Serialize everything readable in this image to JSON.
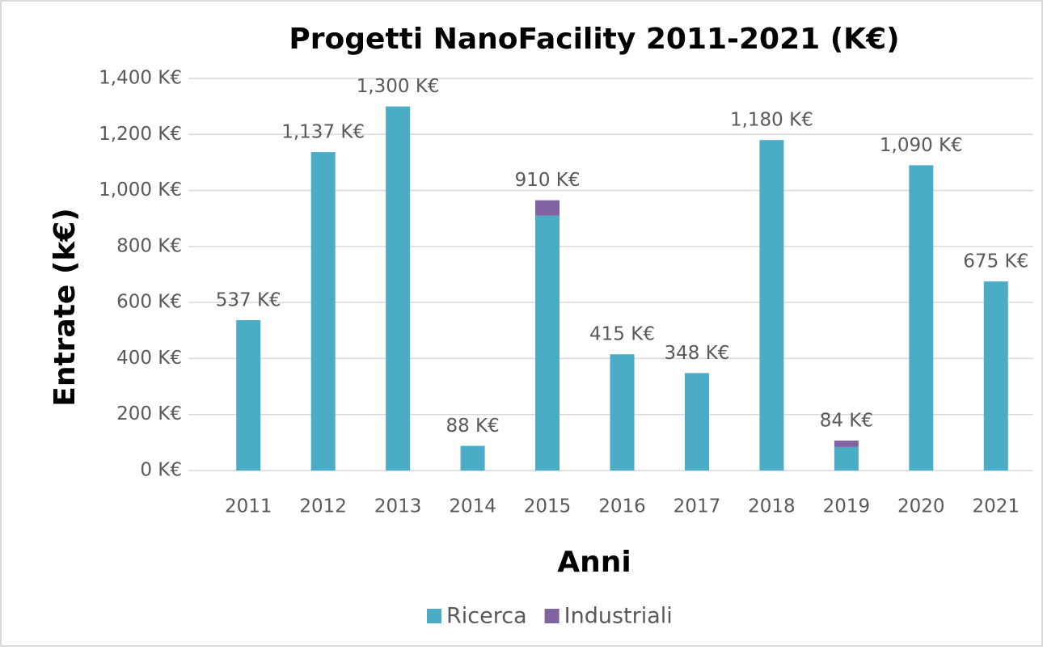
{
  "chart_data": {
    "type": "stacked_bar",
    "title": "Progetti NanoFacility 2011-2021 (K€)",
    "x_label": "Anni",
    "y_label": "Entrate (k€)",
    "categories": [
      "2011",
      "2012",
      "2013",
      "2014",
      "2015",
      "2016",
      "2017",
      "2018",
      "2019",
      "2020",
      "2021"
    ],
    "series": [
      {
        "name": "Ricerca",
        "color": "#4bacc6",
        "values": [
          537,
          1137,
          1300,
          88,
          910,
          415,
          348,
          1180,
          84,
          1090,
          675
        ],
        "value_labels": [
          "537 K€",
          "1,137 K€",
          "1,300 K€",
          "88 K€",
          "910 K€",
          "415 K€",
          "348 K€",
          "1,180 K€",
          "84 K€",
          "1,090 K€",
          "675 K€"
        ]
      },
      {
        "name": "Industriali",
        "color": "#8064a2",
        "values": [
          0,
          0,
          0,
          0,
          55,
          0,
          0,
          0,
          23,
          0,
          0
        ]
      }
    ],
    "ylim": [
      0,
      1400
    ],
    "yticks": [
      {
        "value": 0,
        "label": "0 K€"
      },
      {
        "value": 200,
        "label": "200 K€"
      },
      {
        "value": 400,
        "label": "400 K€"
      },
      {
        "value": 600,
        "label": "600 K€"
      },
      {
        "value": 800,
        "label": "800 K€"
      },
      {
        "value": 1000,
        "label": "1,000 K€"
      },
      {
        "value": 1200,
        "label": "1,200 K€"
      },
      {
        "value": 1400,
        "label": "1,400 K€"
      }
    ],
    "grid": true,
    "legend": "bottom"
  }
}
